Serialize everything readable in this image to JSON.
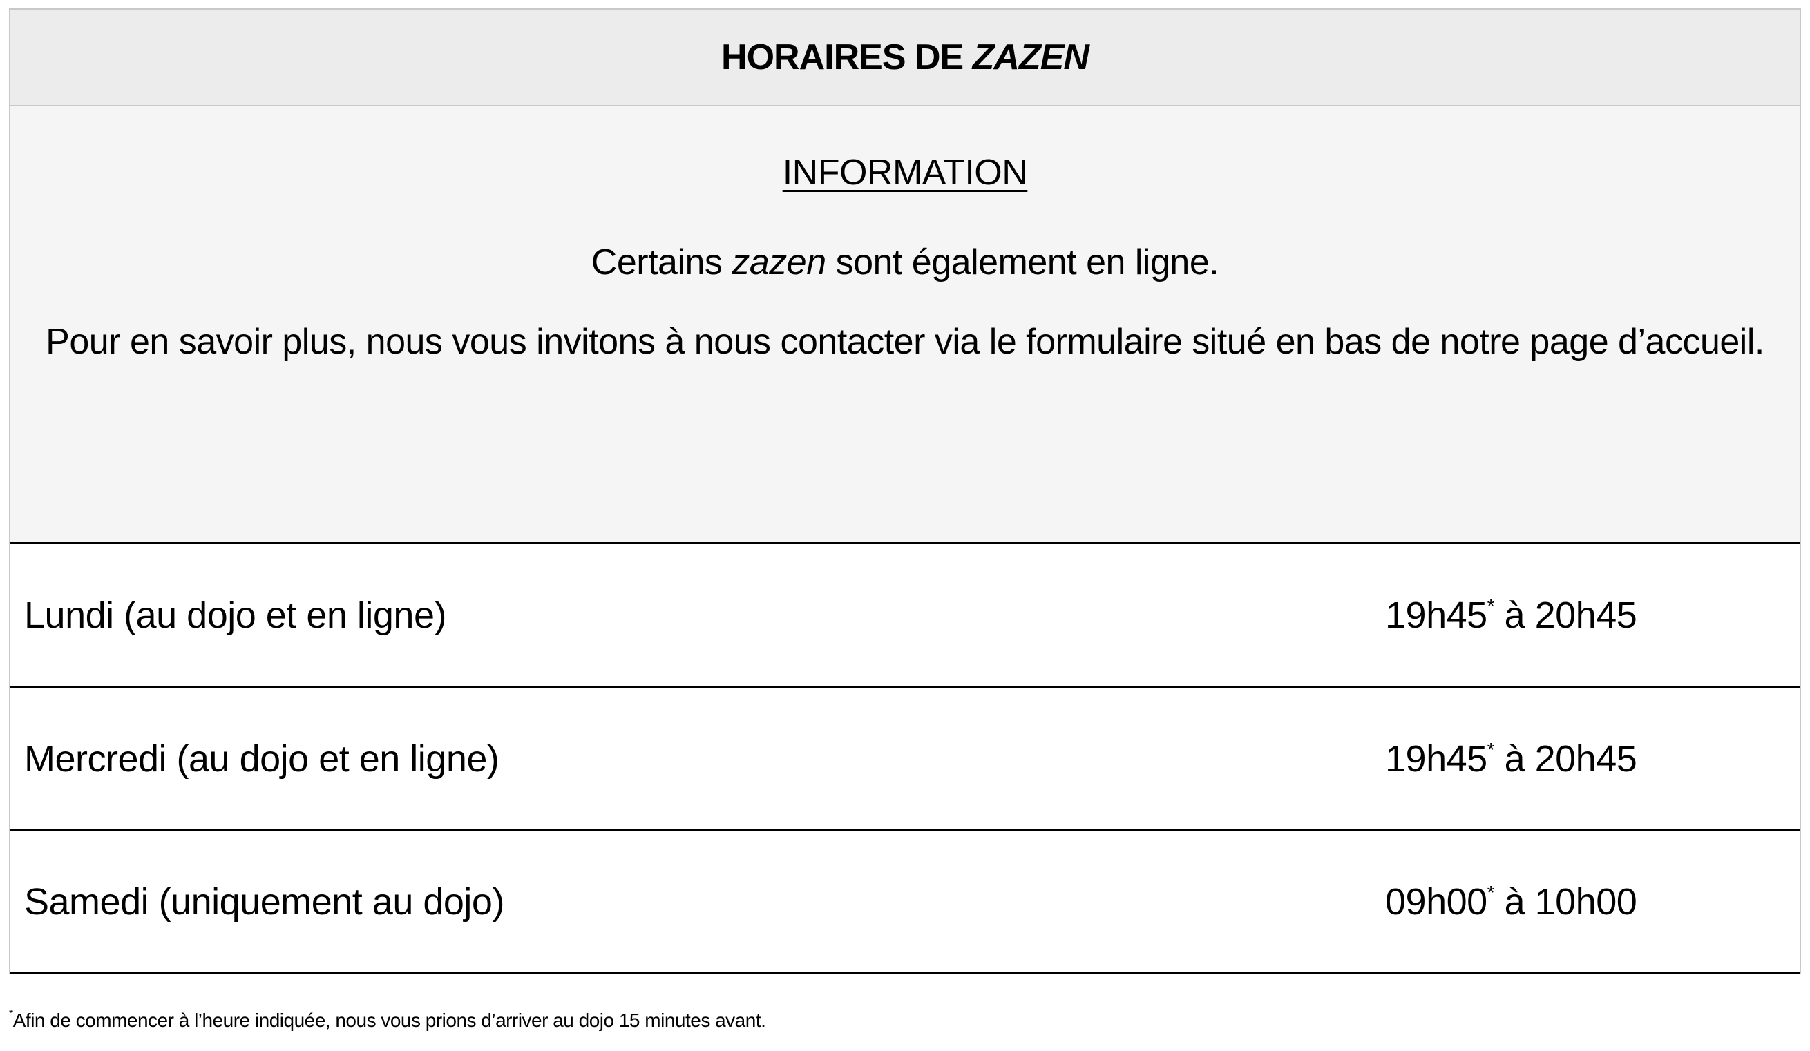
{
  "header": {
    "title_prefix": "HORAIRES DE ",
    "title_italic": "ZAZEN"
  },
  "info": {
    "heading": "INFORMATION",
    "line1_before": "Certains ",
    "line1_italic": "zazen",
    "line1_after": " sont également en ligne.",
    "line2": "Pour en savoir plus, nous vous invitons à nous contacter via le formulaire situé en bas de notre page d’accueil."
  },
  "schedule": [
    {
      "day": "Lundi (au dojo et en ligne)",
      "start": "19h45",
      "mark": "*",
      "end": " à 20h45"
    },
    {
      "day": "Mercredi (au dojo et en ligne)",
      "start": "19h45",
      "mark": "*",
      "end": " à 20h45"
    },
    {
      "day": "Samedi (uniquement au dojo)",
      "start": "09h00",
      "mark": "*",
      "end": " à 10h00"
    }
  ],
  "footnote": {
    "mark": "*",
    "text": "Afin de commencer à l’heure indiquée, nous vous prions d’arriver au dojo 15 minutes avant."
  }
}
